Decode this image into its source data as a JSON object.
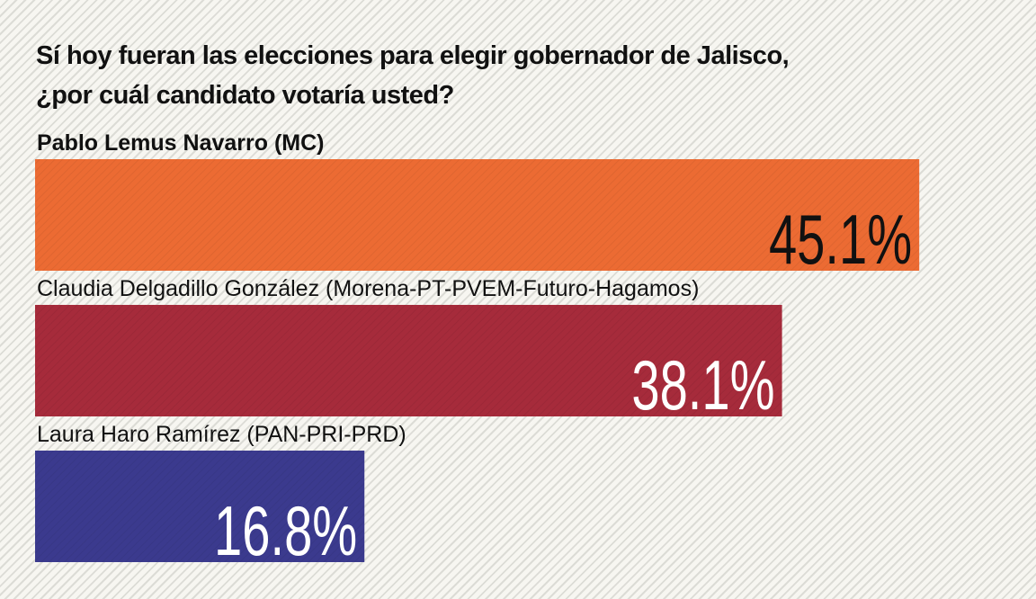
{
  "chart_data": {
    "type": "bar",
    "orientation": "horizontal",
    "title_line1": "Sí hoy fueran las elecciones para elegir gobernador de Jalisco,",
    "title_line2": "¿por cuál candidato votaría usted?",
    "categories": [
      "Pablo Lemus Navarro (MC)",
      "Claudia Delgadillo González (Morena-PT-PVEM-Futuro-Hagamos)",
      "Laura Haro Ramírez (PAN-PRI-PRD)"
    ],
    "values": [
      45.1,
      38.1,
      16.8
    ],
    "value_labels": [
      "45.1%",
      "38.1%",
      "16.8%"
    ],
    "colors": [
      "#ec6b33",
      "#a62b3b",
      "#3b3a8e"
    ],
    "label_colors": [
      "#111111",
      "#ffffff",
      "#ffffff"
    ],
    "xlim": [
      0,
      100
    ],
    "grid": false,
    "legend": "none"
  }
}
